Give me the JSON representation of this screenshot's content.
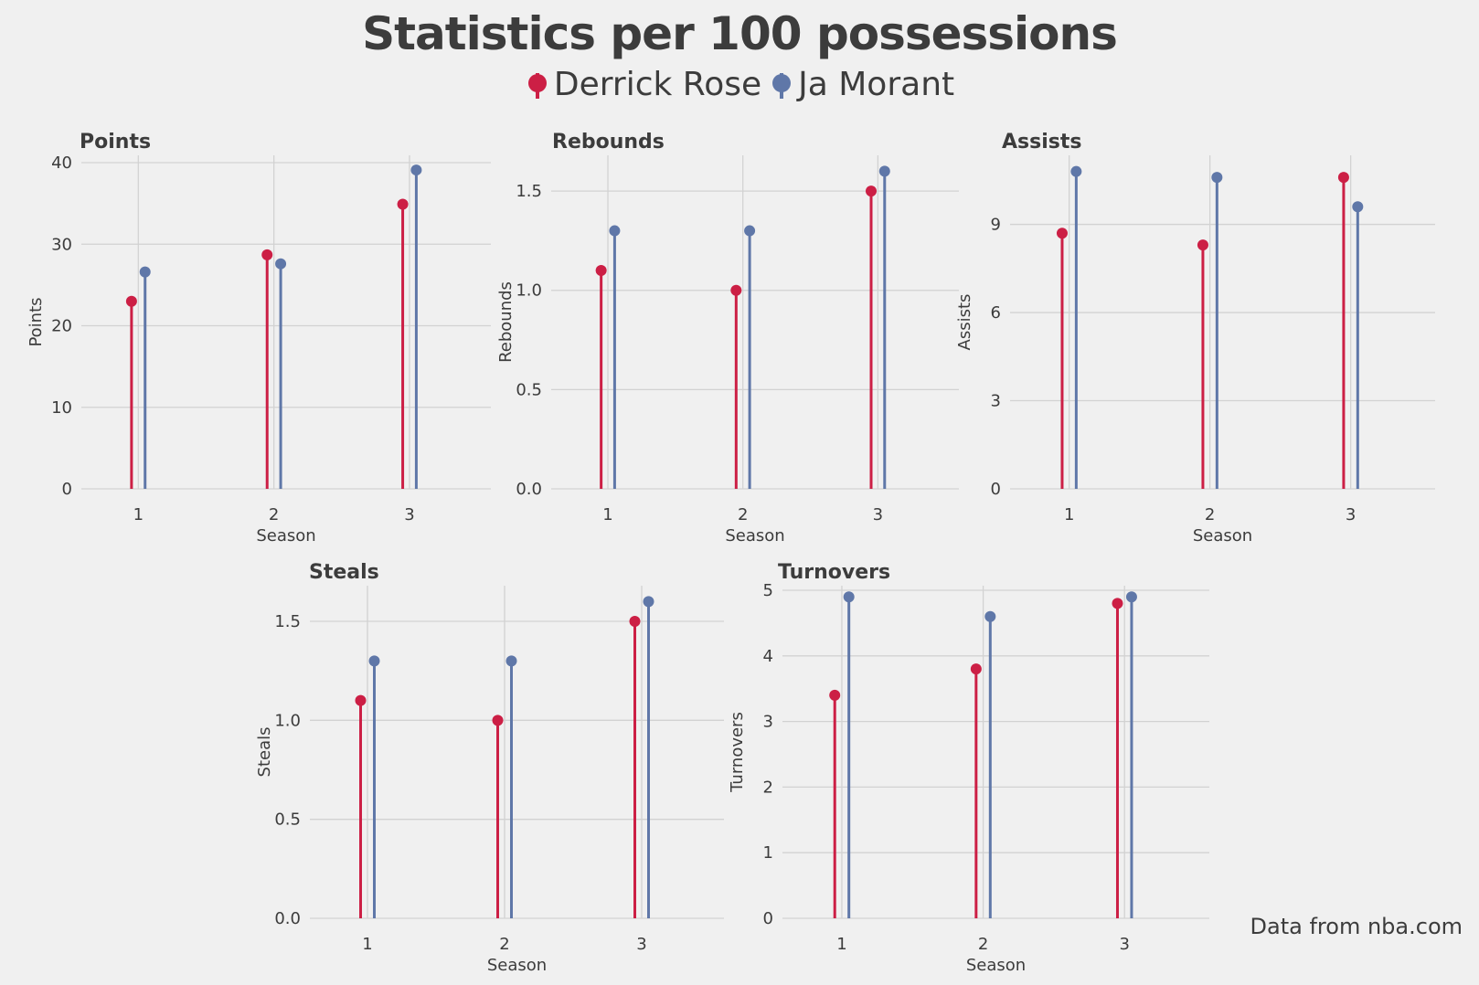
{
  "title": "Statistics per 100 possessions",
  "legend": [
    {
      "name": "Derrick Rose",
      "color": "#cc1f45"
    },
    {
      "name": "Ja Morant",
      "color": "#5f77a8"
    }
  ],
  "source_note": "Data from nba.com",
  "chart_data": [
    {
      "type": "lollipop",
      "title": "Points",
      "xlabel": "Season",
      "ylabel": "Points",
      "categories": [
        "1",
        "2",
        "3"
      ],
      "ylim": [
        0,
        40
      ],
      "yticks": [
        "0",
        "10",
        "20",
        "30",
        "40"
      ],
      "ytick_values": [
        0,
        10,
        20,
        30,
        40
      ],
      "series": [
        {
          "name": "Derrick Rose",
          "values": [
            23.0,
            28.7,
            34.9
          ]
        },
        {
          "name": "Ja Morant",
          "values": [
            26.6,
            27.6,
            39.1
          ]
        }
      ]
    },
    {
      "type": "lollipop",
      "title": "Rebounds",
      "xlabel": "Season",
      "ylabel": "Rebounds",
      "categories": [
        "1",
        "2",
        "3"
      ],
      "ylim": [
        0,
        1.6
      ],
      "yticks": [
        "0.0",
        "0.5",
        "1.0",
        "1.5"
      ],
      "ytick_values": [
        0,
        0.5,
        1.0,
        1.5
      ],
      "series": [
        {
          "name": "Derrick Rose",
          "values": [
            1.1,
            1.0,
            1.5
          ]
        },
        {
          "name": "Ja Morant",
          "values": [
            1.3,
            1.3,
            1.6
          ]
        }
      ]
    },
    {
      "type": "lollipop",
      "title": "Assists",
      "xlabel": "Season",
      "ylabel": "Assists",
      "categories": [
        "1",
        "2",
        "3"
      ],
      "ylim": [
        0,
        10.8
      ],
      "yticks": [
        "0",
        "3",
        "6",
        "9"
      ],
      "ytick_values": [
        0,
        3,
        6,
        9
      ],
      "series": [
        {
          "name": "Derrick Rose",
          "values": [
            8.7,
            8.3,
            10.6
          ]
        },
        {
          "name": "Ja Morant",
          "values": [
            10.8,
            10.6,
            9.6
          ]
        }
      ]
    },
    {
      "type": "lollipop",
      "title": "Steals",
      "xlabel": "Season",
      "ylabel": "Steals",
      "categories": [
        "1",
        "2",
        "3"
      ],
      "ylim": [
        0,
        1.6
      ],
      "yticks": [
        "0.0",
        "0.5",
        "1.0",
        "1.5"
      ],
      "ytick_values": [
        0,
        0.5,
        1.0,
        1.5
      ],
      "series": [
        {
          "name": "Derrick Rose",
          "values": [
            1.1,
            1.0,
            1.5
          ]
        },
        {
          "name": "Ja Morant",
          "values": [
            1.3,
            1.3,
            1.6
          ]
        }
      ]
    },
    {
      "type": "lollipop",
      "title": "Turnovers",
      "xlabel": "Season",
      "ylabel": "Turnovers",
      "categories": [
        "1",
        "2",
        "3"
      ],
      "ylim": [
        0,
        4.9
      ],
      "yticks": [
        "0",
        "1",
        "2",
        "3",
        "4",
        "5"
      ],
      "ytick_values": [
        0,
        1,
        2,
        3,
        4,
        5
      ],
      "series": [
        {
          "name": "Derrick Rose",
          "values": [
            3.4,
            3.8,
            4.8
          ]
        },
        {
          "name": "Ja Morant",
          "values": [
            4.9,
            4.6,
            4.9
          ]
        }
      ]
    }
  ]
}
